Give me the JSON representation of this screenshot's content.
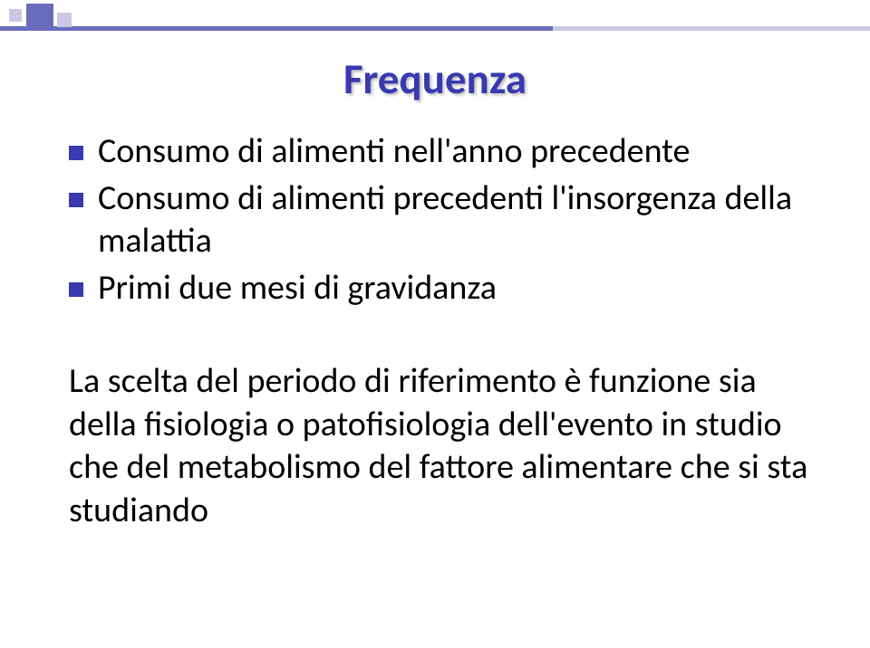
{
  "colors": {
    "accent_dark": "#6b6bbd",
    "accent_light": "#c9c9e6",
    "title_color": "#3939b0",
    "bullet_color": "#3939b0",
    "text_color": "#000000",
    "background": "#ffffff"
  },
  "typography": {
    "title_fontsize": 47,
    "title_weight": 700,
    "body_fontsize": 38,
    "font_family": "Calibri"
  },
  "title": "Frequenza",
  "bullets": [
    "Consumo di alimenti nell'anno precedente",
    "Consumo di alimenti precedenti l'insorgenza della malattia",
    "Primi due mesi di gravidanza"
  ],
  "paragraph": "La scelta del periodo di riferimento è funzione sia della fisiologia o patofisiologia dell'evento in studio che del metabolismo del fattore alimentare che si sta studiando"
}
